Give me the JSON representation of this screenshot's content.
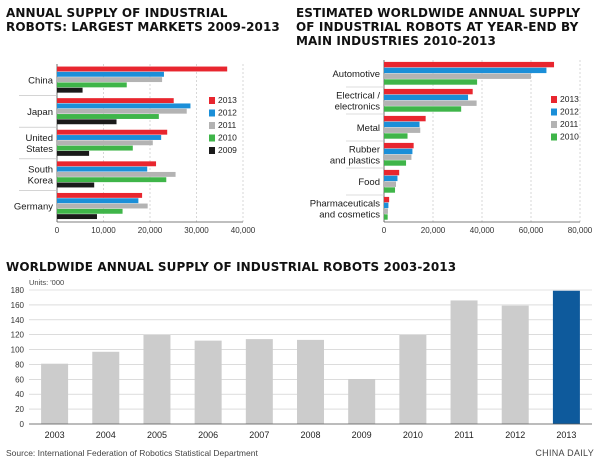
{
  "charts": [
    {
      "title": "ANNUAL SUPPLY OF INDUSTRIAL ROBOTS: LARGEST MARKETS 2009-2013"
    },
    {
      "title": "ESTIMATED WORLDWIDE ANNUAL SUPPLY OF INDUSTRIAL ROBOTS AT YEAR-END BY MAIN INDUSTRIES 2010-2013"
    },
    {
      "title": "WORLDWIDE ANNUAL SUPPLY OF INDUSTRIAL ROBOTS 2003-2013"
    }
  ],
  "footer": {
    "source": "Source: International Federation of Robotics Statistical Department",
    "brand": "CHINA DAILY"
  },
  "chart_data": [
    {
      "type": "bar",
      "orientation": "horizontal",
      "title": "ANNUAL SUPPLY OF INDUSTRIAL ROBOTS: LARGEST MARKETS 2009-2013",
      "categories": [
        "China",
        "Japan",
        "United\nStates",
        "South\nKorea",
        "Germany"
      ],
      "series": [
        {
          "name": "2013",
          "color": "#e8262f",
          "values": [
            36600,
            25100,
            23700,
            21300,
            18300
          ]
        },
        {
          "name": "2012",
          "color": "#1b8fd8",
          "values": [
            23000,
            28700,
            22400,
            19400,
            17500
          ]
        },
        {
          "name": "2011",
          "color": "#b3b3b3",
          "values": [
            22600,
            27900,
            20600,
            25500,
            19500
          ]
        },
        {
          "name": "2010",
          "color": "#3fb549",
          "values": [
            15000,
            21900,
            16300,
            23500,
            14100
          ]
        },
        {
          "name": "2009",
          "color": "#1a1a1a",
          "values": [
            5500,
            12800,
            6900,
            8000,
            8600
          ]
        }
      ],
      "xticks": [
        0,
        10000,
        20000,
        30000,
        40000
      ],
      "xtick_labels": [
        "0",
        "10,000",
        "20,000",
        "30,000",
        "40,000"
      ],
      "xlim": [
        0,
        40000
      ],
      "legend": "right"
    },
    {
      "type": "bar",
      "orientation": "horizontal",
      "title": "ESTIMATED WORLDWIDE ANNUAL SUPPLY OF INDUSTRIAL ROBOTS AT YEAR-END BY MAIN INDUSTRIES 2010-2013",
      "categories": [
        "Automotive",
        "Electrical /\nelectronics",
        "Metal",
        "Rubber\nand plastics",
        "Food",
        "Pharmaceuticals\nand cosmetics"
      ],
      "series": [
        {
          "name": "2013",
          "color": "#e8262f",
          "values": [
            69400,
            36200,
            17000,
            12100,
            6200,
            2100
          ]
        },
        {
          "name": "2012",
          "color": "#1b8fd8",
          "values": [
            66300,
            34300,
            14500,
            11600,
            5500,
            1800
          ]
        },
        {
          "name": "2011",
          "color": "#b3b3b3",
          "values": [
            60000,
            37800,
            14800,
            11200,
            4900,
            1600
          ]
        },
        {
          "name": "2010",
          "color": "#3fb549",
          "values": [
            38000,
            31500,
            9600,
            9000,
            4500,
            1500
          ]
        }
      ],
      "xticks": [
        0,
        20000,
        40000,
        60000,
        80000
      ],
      "xtick_labels": [
        "0",
        "20,000",
        "40,000",
        "60,000",
        "80,000"
      ],
      "xlim": [
        0,
        80000
      ],
      "legend": "right"
    },
    {
      "type": "bar",
      "title": "WORLDWIDE ANNUAL SUPPLY OF INDUSTRIAL ROBOTS 2003-2013",
      "ylabel": "Units: '000",
      "categories": [
        "2003",
        "2004",
        "2005",
        "2006",
        "2007",
        "2008",
        "2009",
        "2010",
        "2011",
        "2012",
        "2013"
      ],
      "values": [
        81,
        97,
        120,
        112,
        114,
        113,
        60,
        120,
        166,
        159,
        179
      ],
      "colors": [
        "#cccccc",
        "#cccccc",
        "#cccccc",
        "#cccccc",
        "#cccccc",
        "#cccccc",
        "#cccccc",
        "#cccccc",
        "#cccccc",
        "#cccccc",
        "#0e5a9c"
      ],
      "yticks": [
        0,
        20,
        40,
        60,
        80,
        100,
        120,
        140,
        160,
        180
      ],
      "ylim": [
        0,
        180
      ],
      "grid": true
    }
  ]
}
